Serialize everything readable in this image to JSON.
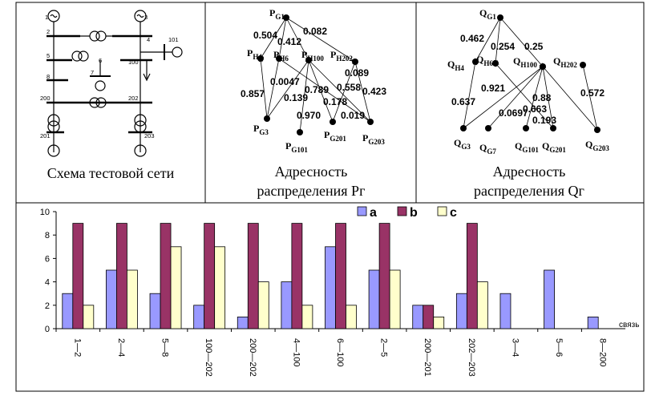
{
  "panels": {
    "scheme": {
      "title": "Схема тестовой сети"
    },
    "pg": {
      "title_lines": [
        "Адресность",
        "распределения Pг"
      ],
      "nodes": [
        {
          "sub": "G1"
        },
        {
          "sub": "H4"
        },
        {
          "sub": "H6"
        },
        {
          "sub": "H100"
        },
        {
          "sub": "H202"
        },
        {
          "sub": "G3"
        },
        {
          "sub": "G101"
        },
        {
          "sub": "G201"
        },
        {
          "sub": "G203"
        }
      ],
      "edge_labels": [
        "0.504",
        "0.412",
        "0.082",
        "0.089",
        "0.857",
        "0.0047",
        "0.139",
        "0.789",
        "0.558",
        "0.423",
        "0.178",
        "0.970",
        "0.019"
      ]
    },
    "qg": {
      "title_lines": [
        "Адресность",
        "распределения Qг"
      ],
      "nodes": [
        {
          "sub": "G1"
        },
        {
          "sub": "H4"
        },
        {
          "sub": "H6"
        },
        {
          "sub": "H100"
        },
        {
          "sub": "H202"
        },
        {
          "sub": "G3"
        },
        {
          "sub": "G7"
        },
        {
          "sub": "G101"
        },
        {
          "sub": "G201"
        },
        {
          "sub": "G203"
        }
      ],
      "edge_labels": [
        "0.462",
        "0.254",
        "0.25",
        "0.921",
        "0.637",
        "0.0697",
        "0.88",
        "0.663",
        "0.193",
        "0.572"
      ]
    }
  },
  "chart_data": {
    "type": "bar",
    "categories": [
      "1—2",
      "2—4",
      "5—8",
      "100—202",
      "200—202",
      "4—100",
      "6—100",
      "2—5",
      "200—201",
      "202—203",
      "3—4",
      "5—6",
      "8—200"
    ],
    "series": [
      {
        "name": "a",
        "color": "#9999FF",
        "values": [
          3,
          5,
          3,
          2,
          1,
          4,
          7,
          5,
          2,
          3,
          3,
          5,
          1
        ]
      },
      {
        "name": "b",
        "color": "#993366",
        "values": [
          9,
          9,
          9,
          9,
          9,
          9,
          9,
          9,
          2,
          9,
          0,
          0,
          0
        ]
      },
      {
        "name": "c",
        "color": "#FFFFCC",
        "values": [
          2,
          5,
          7,
          7,
          4,
          2,
          2,
          5,
          1,
          4,
          0,
          0,
          0
        ]
      }
    ],
    "ylim": [
      0,
      10
    ],
    "yticks": [
      0,
      2,
      4,
      6,
      8,
      10
    ],
    "xlabel": "связь",
    "legend": "top-center",
    "grid": false
  }
}
